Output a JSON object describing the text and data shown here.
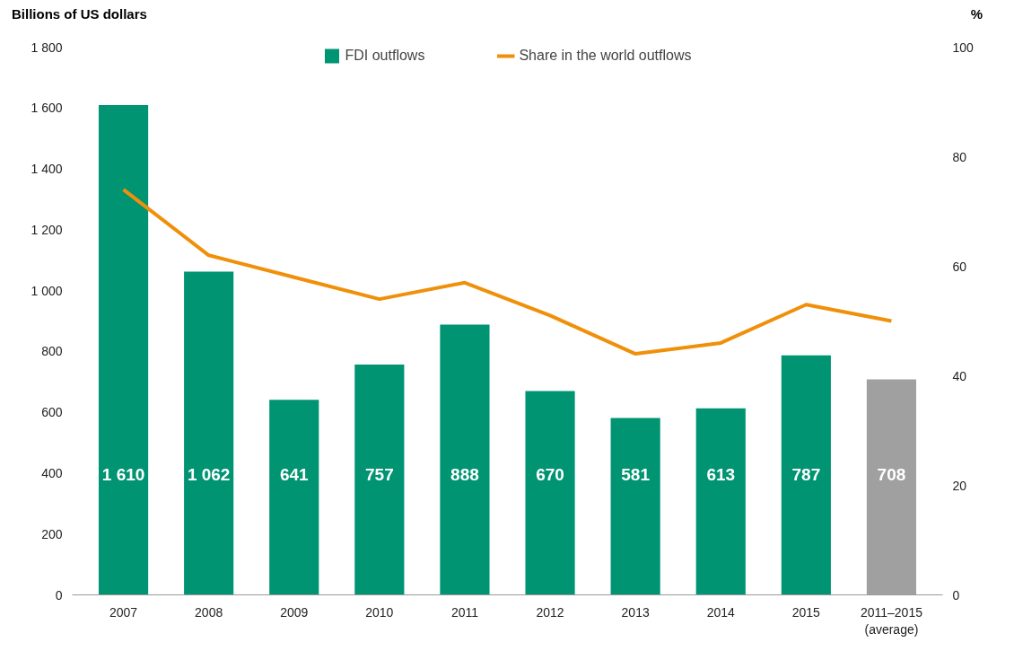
{
  "chart_data": {
    "type": "bar",
    "ylabel": "Billions of US dollars",
    "y2label": "%",
    "categories": [
      "2007",
      "2008",
      "2009",
      "2010",
      "2011",
      "2012",
      "2013",
      "2014",
      "2015",
      "2011–2015\n(average)"
    ],
    "series": [
      {
        "name": "FDI outflows",
        "color": "#009472",
        "value_labels": [
          "1 610",
          "1 062",
          "641",
          "757",
          "888",
          "670",
          "581",
          "613",
          "787",
          "708"
        ],
        "colors": [
          "#009472",
          "#009472",
          "#009472",
          "#009472",
          "#009472",
          "#009472",
          "#009472",
          "#009472",
          "#009472",
          "#a0a0a0"
        ],
        "values": [
          1610,
          1062,
          641,
          757,
          888,
          670,
          581,
          613,
          787,
          708
        ]
      },
      {
        "name": "Share in the world outflows",
        "type": "line",
        "axis": "y2",
        "color": "#f0900a",
        "values": [
          74,
          62,
          58,
          54,
          57,
          51,
          44,
          46,
          53,
          50
        ]
      }
    ],
    "ylim": [
      0,
      1800
    ],
    "yticks": [
      0,
      200,
      400,
      600,
      800,
      {
        "value": 1000,
        "label": "1 000"
      },
      {
        "value": 1200,
        "label": "1 200"
      },
      {
        "value": 1400,
        "label": "1 400"
      },
      {
        "value": 1600,
        "label": "1 600"
      },
      {
        "value": 1800,
        "label": "1 800"
      }
    ],
    "y2lim": [
      0,
      100
    ],
    "y2ticks": [
      0,
      20,
      40,
      60,
      80,
      100
    ],
    "grid": false,
    "legend": "top",
    "marker": "none",
    "line_style": "solid"
  }
}
